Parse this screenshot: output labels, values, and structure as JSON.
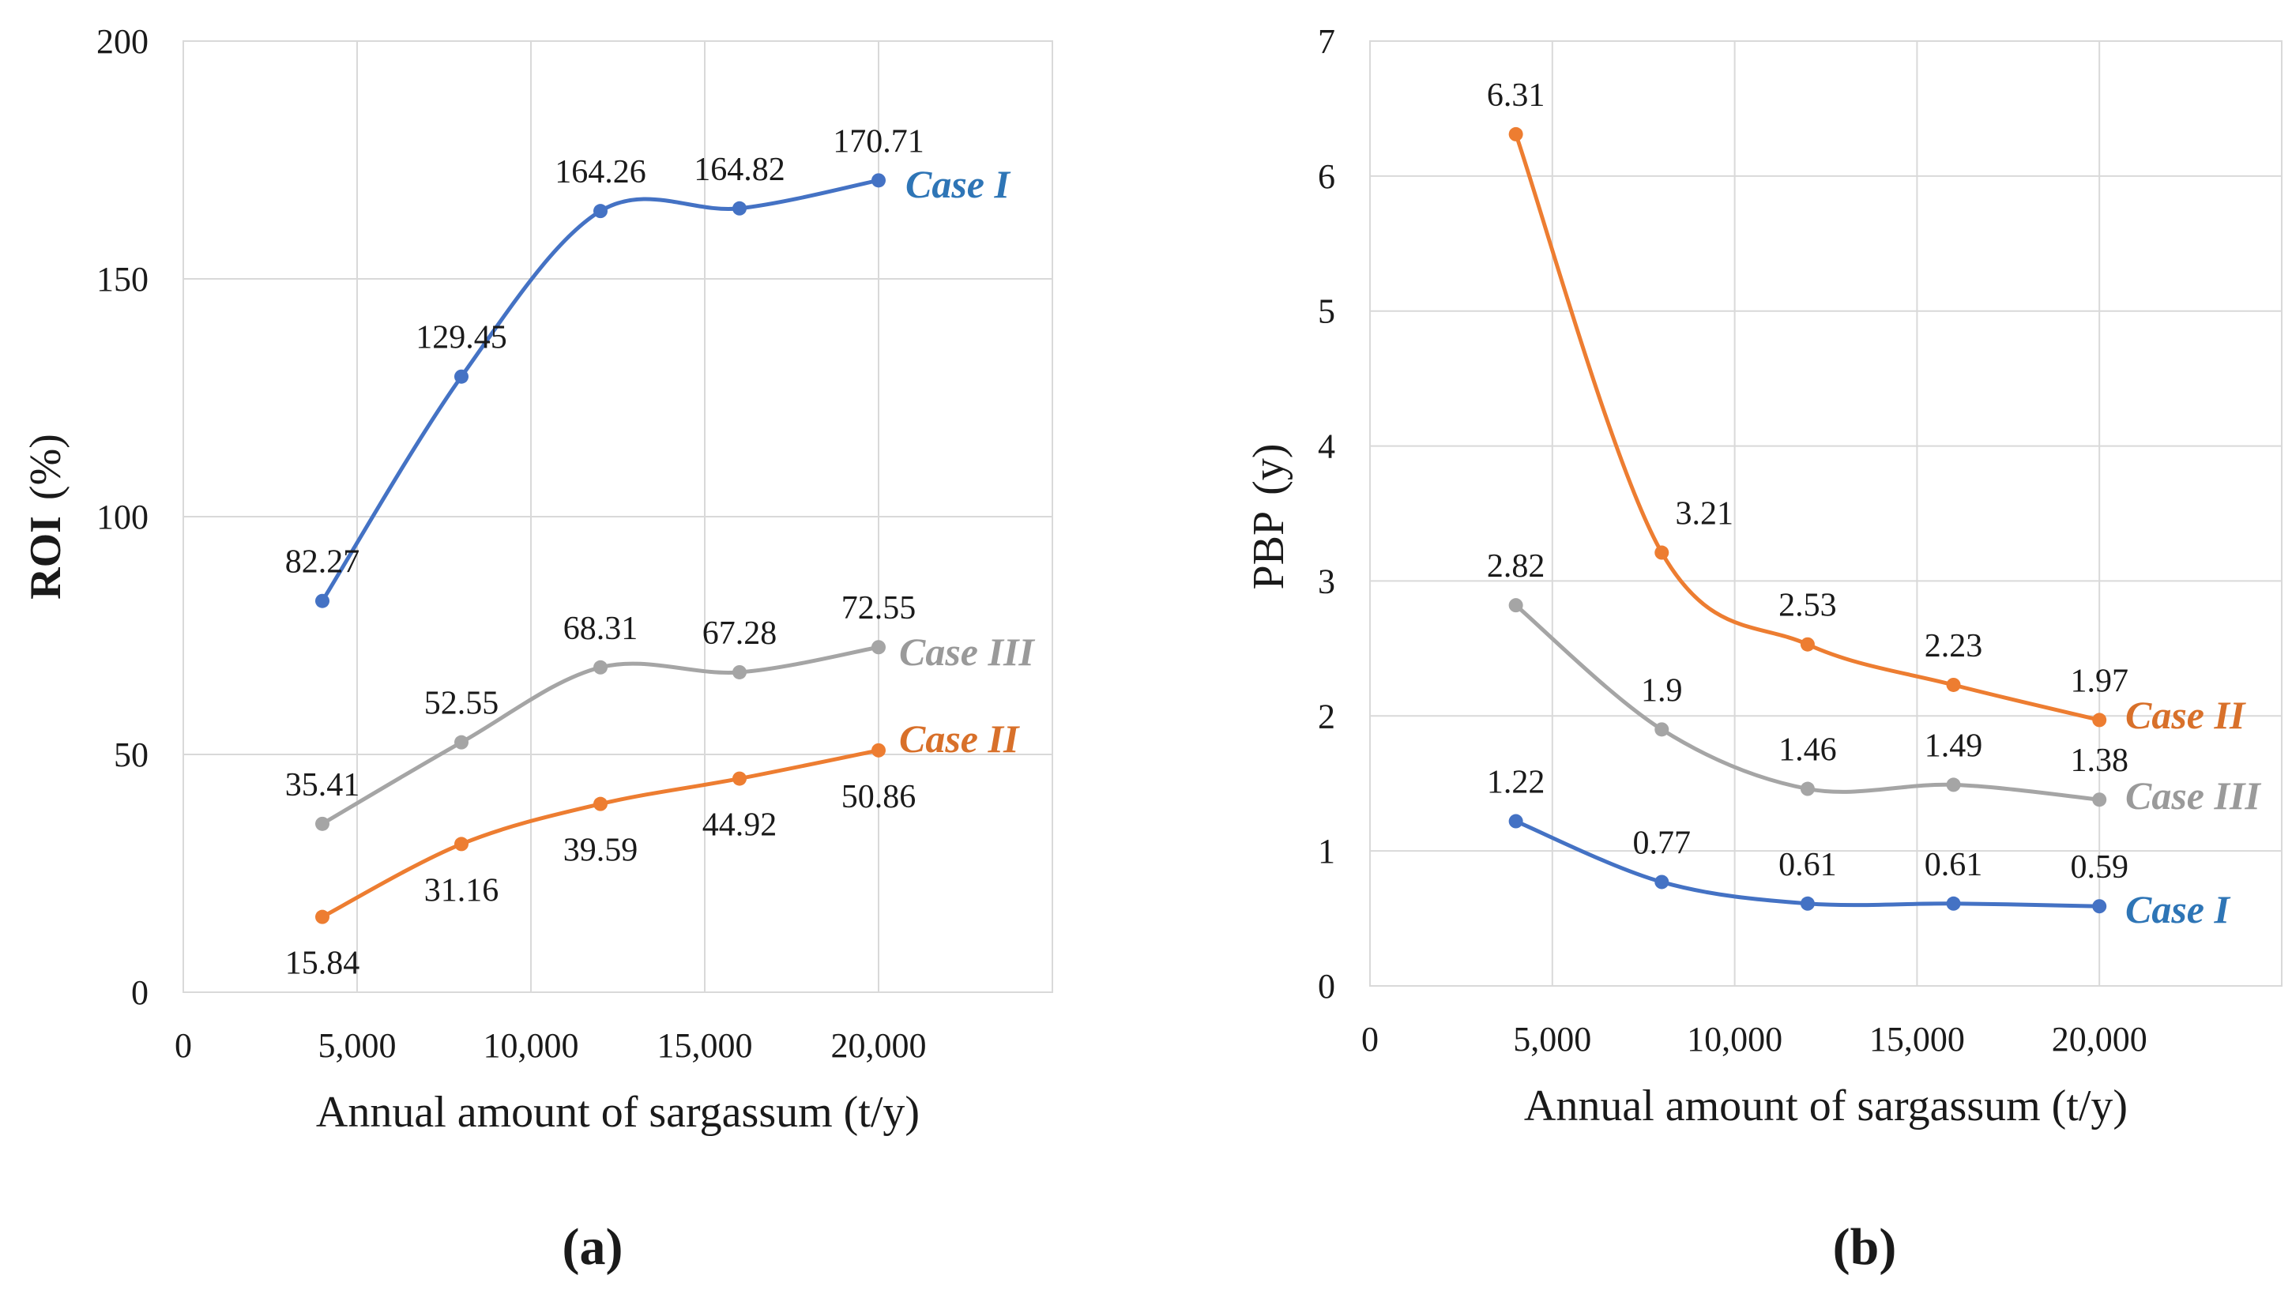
{
  "chart_data": [
    {
      "type": "line",
      "panel_label": "(a)",
      "title": "",
      "xlabel": "Annual amount of sargassum  (t/y)",
      "ylabel_main": "ROI",
      "ylabel_unit": "(%)",
      "xlim": [
        0,
        25000
      ],
      "ylim": [
        0,
        200
      ],
      "xticks": [
        0,
        5000,
        10000,
        15000,
        20000
      ],
      "xtick_labels": [
        "0",
        "5,000",
        "10,000",
        "15,000",
        "20,000"
      ],
      "yticks": [
        0,
        50,
        100,
        150,
        200
      ],
      "ytick_labels": [
        "0",
        "50",
        "100",
        "150",
        "200"
      ],
      "grid": true,
      "x": [
        4000,
        8000,
        12000,
        16000,
        20000
      ],
      "series": [
        {
          "name": "Case I",
          "color": "#4472C4",
          "values": [
            82.27,
            129.45,
            164.26,
            164.82,
            170.71
          ],
          "labels": [
            "82.27",
            "129.45",
            "164.26",
            "164.82",
            "170.71"
          ],
          "label_pos": "above"
        },
        {
          "name": "Case III",
          "color": "#A5A5A5",
          "values": [
            35.41,
            52.55,
            68.31,
            67.28,
            72.55
          ],
          "labels": [
            "35.41",
            "52.55",
            "68.31",
            "67.28",
            "72.55"
          ],
          "label_pos": "above"
        },
        {
          "name": "Case II",
          "color": "#ED7D31",
          "values": [
            15.84,
            31.16,
            39.59,
            44.92,
            50.86
          ],
          "labels": [
            "15.84",
            "31.16",
            "39.59",
            "44.92",
            "50.86"
          ],
          "label_pos": "below"
        }
      ]
    },
    {
      "type": "line",
      "panel_label": "(b)",
      "title": "",
      "xlabel": "Annual amount of sargassum  (t/y)",
      "ylabel_main": "PBP",
      "ylabel_unit": "(y)",
      "xlim": [
        0,
        25000
      ],
      "ylim": [
        0,
        7
      ],
      "xticks": [
        0,
        5000,
        10000,
        15000,
        20000
      ],
      "xtick_labels": [
        "0",
        "5,000",
        "10,000",
        "15,000",
        "20,000"
      ],
      "yticks": [
        0,
        1,
        2,
        3,
        4,
        5,
        6,
        7
      ],
      "ytick_labels": [
        "0",
        "1",
        "2",
        "3",
        "4",
        "5",
        "6",
        "7"
      ],
      "grid": true,
      "x": [
        4000,
        8000,
        12000,
        16000,
        20000
      ],
      "series": [
        {
          "name": "Case II",
          "color": "#ED7D31",
          "values": [
            6.31,
            3.21,
            2.53,
            2.23,
            1.97
          ],
          "labels": [
            "6.31",
            "3.21",
            "2.53",
            "2.23",
            "1.97"
          ],
          "label_pos": "above"
        },
        {
          "name": "Case III",
          "color": "#A5A5A5",
          "values": [
            2.82,
            1.9,
            1.46,
            1.49,
            1.38
          ],
          "labels": [
            "2.82",
            "1.9",
            "1.46",
            "1.49",
            "1.38"
          ],
          "label_pos": "above"
        },
        {
          "name": "Case I",
          "color": "#4472C4",
          "values": [
            1.22,
            0.77,
            0.61,
            0.61,
            0.59
          ],
          "labels": [
            "1.22",
            "0.77",
            "0.61",
            "0.61",
            "0.59"
          ],
          "label_pos": "above"
        }
      ]
    }
  ]
}
